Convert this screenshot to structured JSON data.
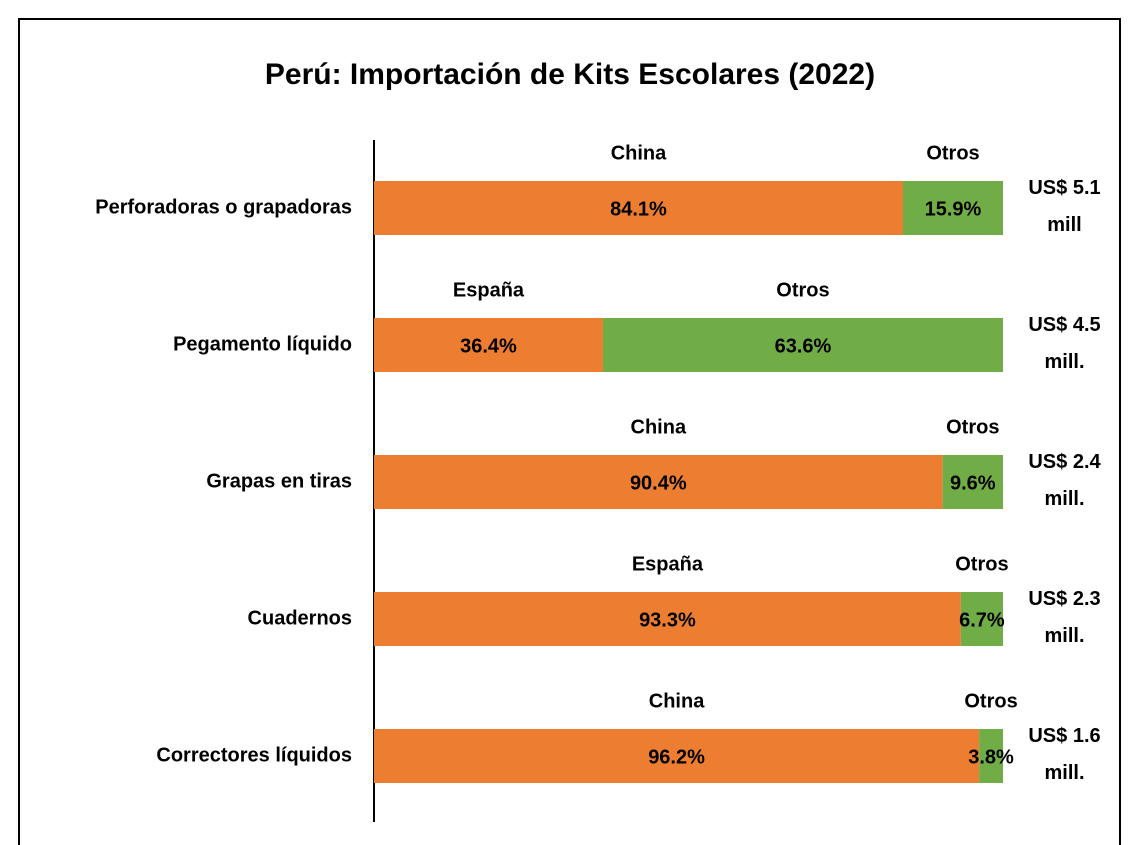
{
  "chart_data": {
    "type": "stacked_bar_100",
    "title": "Perú: Importación de Kits Escolares (2022)",
    "categories": [
      "Perforadoras o grapadoras",
      "Pegamento líquido",
      "Grapas en tiras",
      "Cuadernos",
      "Correctores líquidos"
    ],
    "xlim": [
      0,
      100
    ],
    "series": [
      {
        "color": "#ed7d31",
        "labels": [
          "China",
          "España",
          "China",
          "España",
          "China"
        ],
        "values": [
          84.1,
          36.4,
          90.4,
          93.3,
          96.2
        ],
        "value_labels": [
          "84.1%",
          "36.4%",
          "90.4%",
          "93.3%",
          "96.2%"
        ]
      },
      {
        "color": "#70ad47",
        "labels": [
          "Otros",
          "Otros",
          "Otros",
          "Otros",
          "Otros"
        ],
        "values": [
          15.9,
          63.6,
          9.6,
          6.7,
          3.8
        ],
        "value_labels": [
          "15.9%",
          "63.6%",
          "9.6%",
          "6.7%",
          "3.8%"
        ]
      }
    ],
    "totals": [
      5.1,
      4.5,
      2.4,
      2.3,
      1.6
    ],
    "total_labels": [
      "US$ 5.1 mill",
      "US$ 4.5 mill.",
      "US$ 2.4 mill.",
      "US$ 2.3 mill.",
      "US$ 1.6 mill."
    ]
  }
}
